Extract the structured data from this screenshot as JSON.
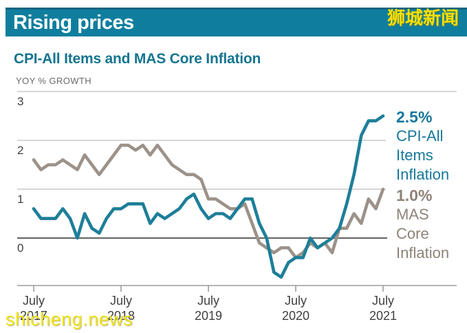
{
  "header": {
    "title": "Rising prices",
    "badge": "狮城新闻"
  },
  "chart": {
    "title": "CPI-All Items and MAS Core Inflation",
    "y_axis_label": "YOY % GROWTH",
    "y_ticks": [
      "3",
      "2",
      "1",
      "0"
    ],
    "x_ticks": [
      {
        "month": "July",
        "year": "2017"
      },
      {
        "month": "July",
        "year": "2018"
      },
      {
        "month": "July",
        "year": "2019"
      },
      {
        "month": "July",
        "year": "2020"
      },
      {
        "month": "July",
        "year": "2021"
      }
    ],
    "annotations": {
      "cpi": {
        "value": "2.5%",
        "lines": [
          "CPI-All",
          "Items",
          "Inflation"
        ]
      },
      "core": {
        "value": "1.0%",
        "lines": [
          "MAS",
          "Core",
          "Inflation"
        ]
      }
    }
  },
  "watermark": "shicheng.news",
  "chart_data": {
    "type": "line",
    "title": "CPI-All Items and MAS Core Inflation",
    "ylabel": "YOY % GROWTH",
    "ylim": [
      -1,
      3
    ],
    "grid": "horizontal",
    "x_start": "2017-07",
    "x_end": "2021-07",
    "frequency": "monthly",
    "x_tick_labels": [
      "July 2017",
      "July 2018",
      "July 2019",
      "July 2020",
      "July 2021"
    ],
    "series": [
      {
        "id": "core",
        "name": "MAS Core Inflation",
        "color": "#9c9289",
        "end_label": "1.0%",
        "values": [
          1.6,
          1.4,
          1.5,
          1.5,
          1.6,
          1.5,
          1.4,
          1.7,
          1.5,
          1.3,
          1.5,
          1.7,
          1.9,
          1.9,
          1.8,
          1.9,
          1.7,
          1.9,
          1.7,
          1.5,
          1.4,
          1.3,
          1.3,
          1.2,
          0.8,
          0.8,
          0.7,
          0.6,
          0.6,
          0.7,
          0.3,
          -0.1,
          -0.2,
          -0.3,
          -0.2,
          -0.2,
          -0.4,
          -0.3,
          -0.1,
          -0.2,
          -0.1,
          -0.3,
          0.2,
          0.2,
          0.5,
          0.3,
          0.8,
          0.6,
          1.0
        ]
      },
      {
        "id": "cpi",
        "name": "CPI-All Items Inflation",
        "color": "#1e7e99",
        "end_label": "2.5%",
        "values": [
          0.6,
          0.4,
          0.4,
          0.4,
          0.6,
          0.4,
          0.0,
          0.5,
          0.2,
          0.1,
          0.4,
          0.6,
          0.6,
          0.7,
          0.7,
          0.7,
          0.3,
          0.5,
          0.4,
          0.5,
          0.6,
          0.8,
          0.9,
          0.6,
          0.4,
          0.5,
          0.5,
          0.4,
          0.6,
          0.8,
          0.8,
          0.3,
          0.0,
          -0.7,
          -0.8,
          -0.5,
          -0.4,
          -0.4,
          0.0,
          -0.2,
          -0.1,
          0.0,
          0.2,
          0.7,
          1.3,
          2.1,
          2.4,
          2.4,
          2.5
        ]
      }
    ]
  }
}
